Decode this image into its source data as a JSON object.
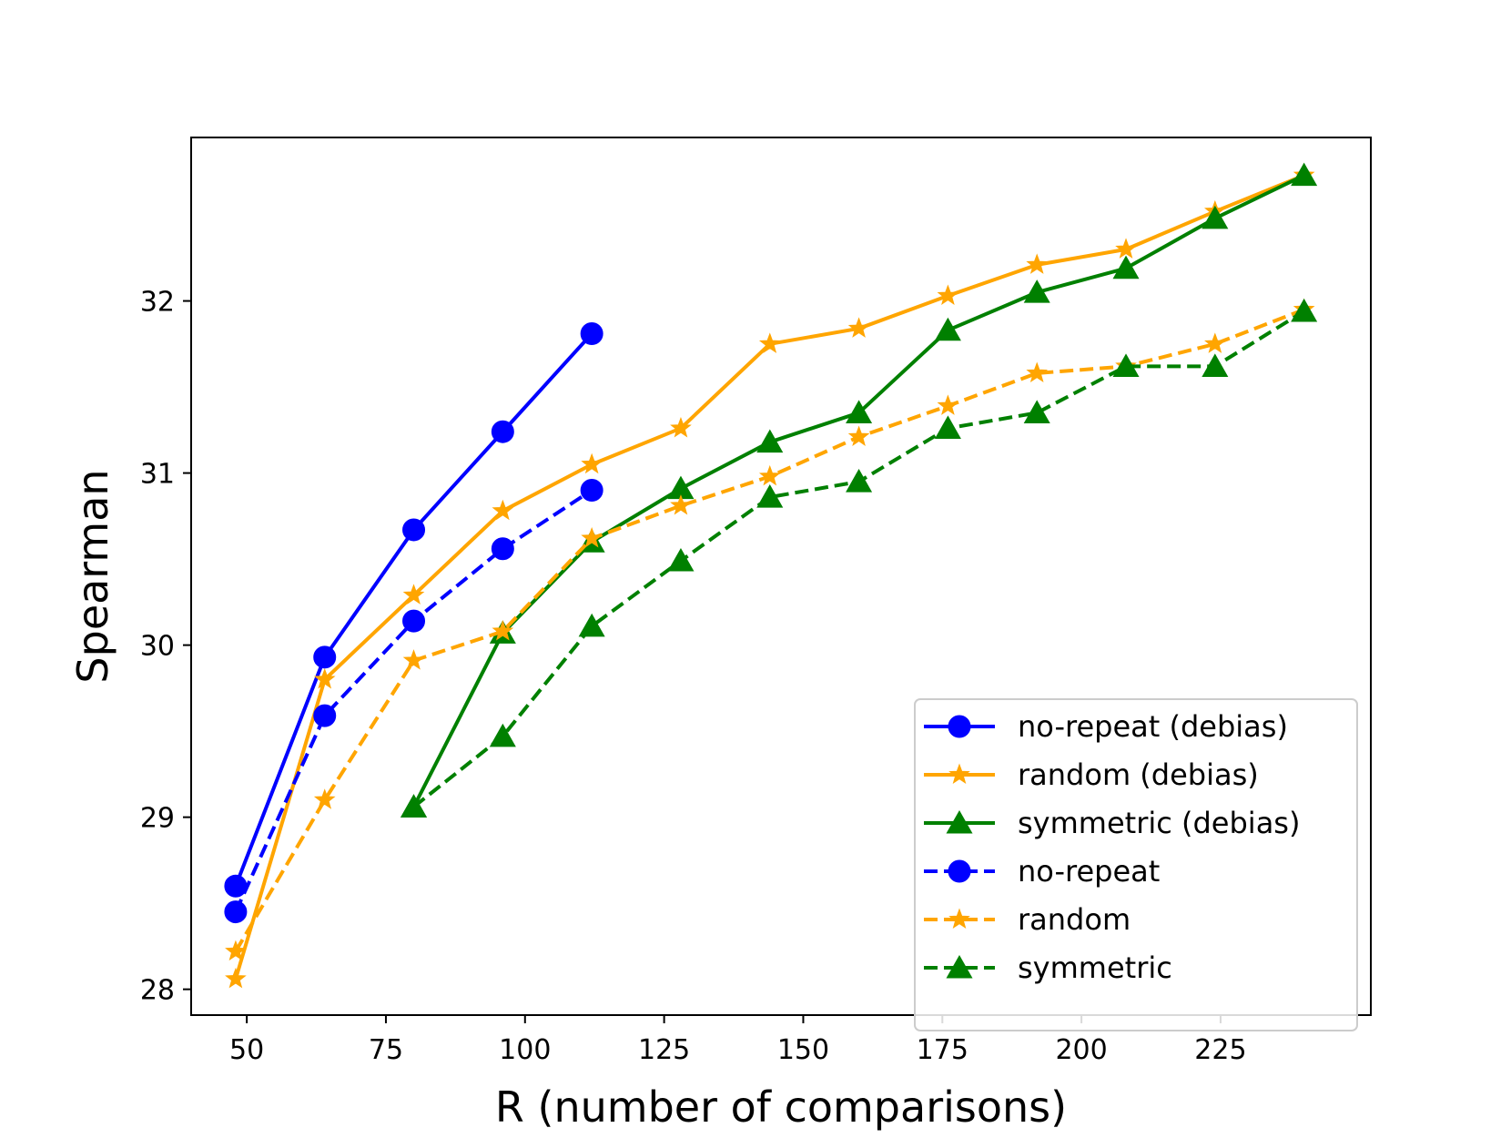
{
  "chart_data": {
    "type": "line",
    "title": "",
    "xlabel": "R (number of comparisons)",
    "ylabel": "Spearman",
    "xlim": [
      40,
      252
    ],
    "ylim": [
      27.85,
      32.95
    ],
    "x_ticks": [
      50,
      75,
      100,
      125,
      150,
      175,
      200,
      225
    ],
    "y_ticks": [
      28,
      29,
      30,
      31,
      32
    ],
    "grid": false,
    "legend_position": "lower right",
    "series": [
      {
        "name": "no-repeat (debias)",
        "color": "#0000ff",
        "linestyle": "solid",
        "marker": "circle",
        "x": [
          48,
          64,
          80,
          96,
          112
        ],
        "y": [
          28.6,
          29.93,
          30.67,
          31.24,
          31.81
        ]
      },
      {
        "name": "random (debias)",
        "color": "#ffa500",
        "linestyle": "solid",
        "marker": "star",
        "x": [
          48,
          64,
          80,
          96,
          112,
          128,
          144,
          160,
          176,
          192,
          208,
          224,
          240
        ],
        "y": [
          28.06,
          29.8,
          30.29,
          30.78,
          31.05,
          31.26,
          31.75,
          31.84,
          32.03,
          32.21,
          32.3,
          32.52,
          32.73
        ]
      },
      {
        "name": "symmetric (debias)",
        "color": "#008000",
        "linestyle": "solid",
        "marker": "triangle",
        "x": [
          80,
          96,
          112,
          128,
          144,
          160,
          176,
          192,
          208,
          224,
          240
        ],
        "y": [
          29.06,
          30.07,
          30.6,
          30.91,
          31.18,
          31.35,
          31.83,
          32.05,
          32.19,
          32.48,
          32.73
        ]
      },
      {
        "name": "no-repeat",
        "color": "#0000ff",
        "linestyle": "dashed",
        "marker": "circle",
        "x": [
          48,
          64,
          80,
          96,
          112
        ],
        "y": [
          28.45,
          29.59,
          30.14,
          30.56,
          30.9
        ]
      },
      {
        "name": "random",
        "color": "#ffa500",
        "linestyle": "dashed",
        "marker": "star",
        "x": [
          48,
          64,
          80,
          96,
          112,
          128,
          144,
          160,
          176,
          192,
          208,
          224,
          240
        ],
        "y": [
          28.22,
          29.1,
          29.91,
          30.08,
          30.62,
          30.81,
          30.98,
          31.21,
          31.39,
          31.58,
          31.62,
          31.75,
          31.95
        ]
      },
      {
        "name": "symmetric",
        "color": "#008000",
        "linestyle": "dashed",
        "marker": "triangle",
        "x": [
          80,
          96,
          112,
          128,
          144,
          160,
          176,
          192,
          208,
          224,
          240
        ],
        "y": [
          29.06,
          29.47,
          30.11,
          30.49,
          30.86,
          30.95,
          31.26,
          31.35,
          31.62,
          31.62,
          31.94
        ]
      }
    ]
  }
}
